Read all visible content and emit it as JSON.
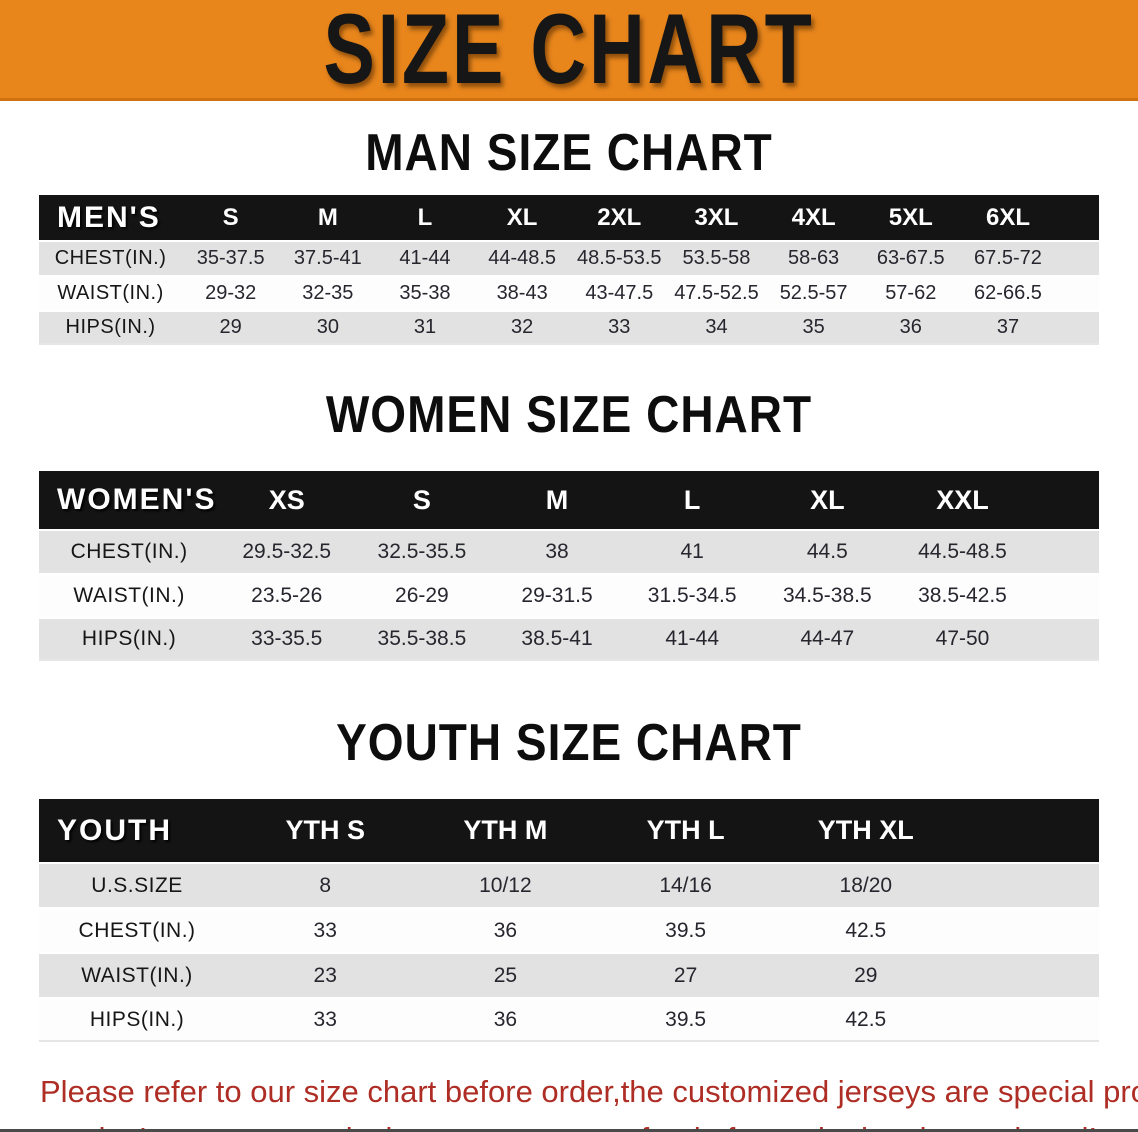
{
  "banner": {
    "title": "SIZE CHART"
  },
  "colors": {
    "banner_orange": "#E8861C",
    "table_header_black": "#141414",
    "row_gray": "#E2E2E2",
    "row_white": "#FDFDFD",
    "disclaimer_red": "#AE2D24"
  },
  "chart_data": [
    {
      "type": "table",
      "title": "MAN SIZE CHART",
      "corner_label": "MEN'S",
      "columns": [
        "S",
        "M",
        "L",
        "XL",
        "2XL",
        "3XL",
        "4XL",
        "5XL",
        "6XL"
      ],
      "rows": [
        {
          "label": "CHEST(IN.)",
          "values": [
            "35-37.5",
            "37.5-41",
            "41-44",
            "44-48.5",
            "48.5-53.5",
            "53.5-58",
            "58-63",
            "63-67.5",
            "67.5-72"
          ]
        },
        {
          "label": "WAIST(IN.)",
          "values": [
            "29-32",
            "32-35",
            "35-38",
            "38-43",
            "43-47.5",
            "47.5-52.5",
            "52.5-57",
            "57-62",
            "62-66.5"
          ]
        },
        {
          "label": "HIPS(IN.)",
          "values": [
            "29",
            "30",
            "31",
            "32",
            "33",
            "34",
            "35",
            "36",
            "37"
          ]
        }
      ]
    },
    {
      "type": "table",
      "title": "WOMEN SIZE CHART",
      "corner_label": "WOMEN'S",
      "columns": [
        "XS",
        "S",
        "M",
        "L",
        "XL",
        "XXL"
      ],
      "rows": [
        {
          "label": "CHEST(IN.)",
          "values": [
            "29.5-32.5",
            "32.5-35.5",
            "38",
            "41",
            "44.5",
            "44.5-48.5"
          ]
        },
        {
          "label": "WAIST(IN.)",
          "values": [
            "23.5-26",
            "26-29",
            "29-31.5",
            "31.5-34.5",
            "34.5-38.5",
            "38.5-42.5"
          ]
        },
        {
          "label": "HIPS(IN.)",
          "values": [
            "33-35.5",
            "35.5-38.5",
            "38.5-41",
            "41-44",
            "44-47",
            "47-50"
          ]
        }
      ]
    },
    {
      "type": "table",
      "title": "YOUTH SIZE CHART",
      "corner_label": "YOUTH",
      "columns": [
        "YTH S",
        "YTH M",
        "YTH L",
        "YTH XL"
      ],
      "rows": [
        {
          "label": "U.S.SIZE",
          "values": [
            "8",
            "10/12",
            "14/16",
            "18/20"
          ]
        },
        {
          "label": "CHEST(IN.)",
          "values": [
            "33",
            "36",
            "39.5",
            "42.5"
          ]
        },
        {
          "label": "WAIST(IN.)",
          "values": [
            "23",
            "25",
            "27",
            "29"
          ]
        },
        {
          "label": "HIPS(IN.)",
          "values": [
            "33",
            "36",
            "39.5",
            "42.5"
          ]
        }
      ]
    }
  ],
  "disclaimer": {
    "line1": "Please refer to our size chart before order,the customized jerseys are special products,",
    "line2": "we don't accept cancel, change, teturn or refund after order has been placed!"
  }
}
